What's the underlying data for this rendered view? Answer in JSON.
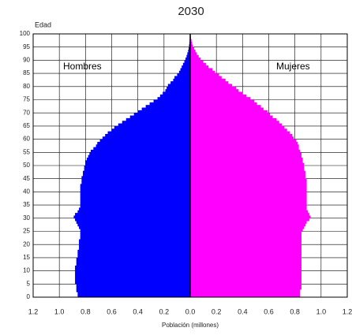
{
  "chart_data": {
    "type": "pyramid",
    "title": "2030",
    "y_label": "Edad",
    "x_label": "Población (millones)",
    "xlim": [
      -1.2,
      1.2
    ],
    "xticks": [
      {
        "value": -1.2,
        "label": "1.2"
      },
      {
        "value": -1,
        "label": "1.0"
      },
      {
        "value": -0.8,
        "label": "0.8"
      },
      {
        "value": -0.6,
        "label": "0.6"
      },
      {
        "value": -0.4,
        "label": "0.4"
      },
      {
        "value": -0.2,
        "label": "0.2"
      },
      {
        "value": 0,
        "label": "0.0"
      },
      0.2,
      0.4,
      0.6,
      0.8,
      {
        "value": 1,
        "label": "1.0"
      },
      1.2
    ],
    "ylim": [
      0,
      100
    ],
    "yticks": [
      0,
      5,
      10,
      15,
      20,
      25,
      30,
      35,
      40,
      45,
      50,
      55,
      60,
      65,
      70,
      75,
      80,
      85,
      90,
      95,
      100
    ],
    "grid": true,
    "y": [
      0,
      1,
      2,
      3,
      4,
      5,
      6,
      7,
      8,
      9,
      10,
      11,
      12,
      13,
      14,
      15,
      16,
      17,
      18,
      19,
      20,
      21,
      22,
      23,
      24,
      25,
      26,
      27,
      28,
      29,
      30,
      31,
      32,
      33,
      34,
      35,
      36,
      37,
      38,
      39,
      40,
      41,
      42,
      43,
      44,
      45,
      46,
      47,
      48,
      49,
      50,
      51,
      52,
      53,
      54,
      55,
      56,
      57,
      58,
      59,
      60,
      61,
      62,
      63,
      64,
      65,
      66,
      67,
      68,
      69,
      70,
      71,
      72,
      73,
      74,
      75,
      76,
      77,
      78,
      79,
      80,
      81,
      82,
      83,
      84,
      85,
      86,
      87,
      88,
      89,
      90,
      91,
      92,
      93,
      94,
      95,
      96,
      97,
      98,
      99,
      100
    ],
    "series": [
      {
        "name": "Hombres",
        "color": "#0000ff",
        "values": [
          -0.86,
          -0.86,
          -0.87,
          -0.87,
          -0.87,
          -0.88,
          -0.88,
          -0.88,
          -0.88,
          -0.88,
          -0.88,
          -0.88,
          -0.87,
          -0.87,
          -0.87,
          -0.86,
          -0.86,
          -0.86,
          -0.85,
          -0.85,
          -0.85,
          -0.85,
          -0.84,
          -0.84,
          -0.84,
          -0.84,
          -0.85,
          -0.86,
          -0.87,
          -0.88,
          -0.89,
          -0.88,
          -0.86,
          -0.85,
          -0.84,
          -0.84,
          -0.84,
          -0.84,
          -0.84,
          -0.84,
          -0.84,
          -0.84,
          -0.84,
          -0.83,
          -0.83,
          -0.83,
          -0.82,
          -0.82,
          -0.81,
          -0.81,
          -0.8,
          -0.8,
          -0.79,
          -0.78,
          -0.77,
          -0.76,
          -0.74,
          -0.72,
          -0.71,
          -0.69,
          -0.67,
          -0.65,
          -0.63,
          -0.6,
          -0.58,
          -0.55,
          -0.52,
          -0.49,
          -0.46,
          -0.43,
          -0.4,
          -0.37,
          -0.34,
          -0.31,
          -0.28,
          -0.25,
          -0.23,
          -0.21,
          -0.19,
          -0.18,
          -0.17,
          -0.15,
          -0.13,
          -0.12,
          -0.1,
          -0.085,
          -0.075,
          -0.065,
          -0.055,
          -0.045,
          -0.036,
          -0.028,
          -0.022,
          -0.016,
          -0.012,
          -0.009,
          -0.006,
          -0.004,
          -0.003,
          -0.002,
          -0.002
        ]
      },
      {
        "name": "Mujeres",
        "color": "#ff00ff",
        "values": [
          0.84,
          0.84,
          0.84,
          0.85,
          0.85,
          0.85,
          0.85,
          0.85,
          0.85,
          0.85,
          0.85,
          0.85,
          0.85,
          0.85,
          0.85,
          0.85,
          0.85,
          0.85,
          0.85,
          0.85,
          0.85,
          0.85,
          0.85,
          0.85,
          0.85,
          0.86,
          0.87,
          0.88,
          0.89,
          0.91,
          0.92,
          0.91,
          0.9,
          0.89,
          0.89,
          0.89,
          0.89,
          0.89,
          0.89,
          0.89,
          0.89,
          0.89,
          0.89,
          0.89,
          0.89,
          0.88,
          0.88,
          0.88,
          0.87,
          0.87,
          0.87,
          0.86,
          0.86,
          0.85,
          0.85,
          0.84,
          0.83,
          0.83,
          0.82,
          0.81,
          0.79,
          0.78,
          0.76,
          0.74,
          0.72,
          0.7,
          0.68,
          0.66,
          0.63,
          0.61,
          0.59,
          0.56,
          0.54,
          0.51,
          0.49,
          0.46,
          0.43,
          0.4,
          0.37,
          0.35,
          0.32,
          0.29,
          0.27,
          0.24,
          0.22,
          0.19,
          0.17,
          0.14,
          0.12,
          0.1,
          0.08,
          0.065,
          0.05,
          0.04,
          0.03,
          0.02,
          0.014,
          0.01,
          0.006,
          0.004,
          0.003
        ]
      }
    ]
  }
}
